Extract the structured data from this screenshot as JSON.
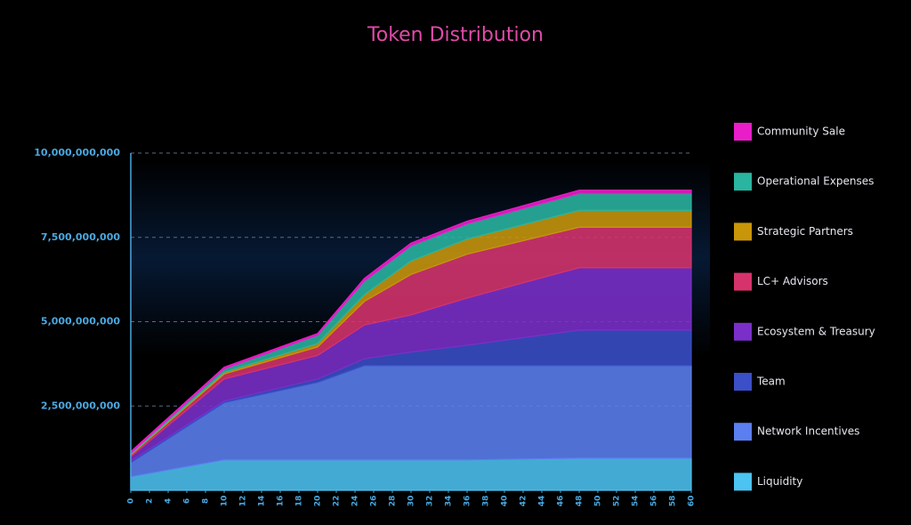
{
  "chart_data": {
    "type": "stacked-area",
    "title": "Token Distribution",
    "x": [
      0,
      10,
      20,
      25,
      30,
      36,
      48,
      60
    ],
    "xlim": [
      0,
      62
    ],
    "xticks": [
      0,
      2,
      4,
      6,
      8,
      10,
      12,
      14,
      16,
      18,
      20,
      22,
      24,
      26,
      28,
      30,
      32,
      34,
      36,
      38,
      40,
      42,
      44,
      46,
      48,
      50,
      52,
      54,
      56,
      58,
      60
    ],
    "ylim": [
      0,
      10000000000
    ],
    "yticks": [
      {
        "value": 2500000000,
        "label": "2,500,000,000"
      },
      {
        "value": 5000000000,
        "label": "5,000,000,000"
      },
      {
        "value": 7500000000,
        "label": "7,500,000,000"
      },
      {
        "value": 10000000000,
        "label": "10,000,000,000"
      }
    ],
    "grid": true,
    "legend": "right",
    "series": [
      {
        "name": "Liquidity",
        "color": "#4cc3f0",
        "values": [
          400000000,
          900000000,
          900000000,
          900000000,
          900000000,
          900000000,
          950000000,
          950000000
        ]
      },
      {
        "name": "Network Incentives",
        "color": "#5b7ff0",
        "values": [
          420000000,
          1700000000,
          2300000000,
          2800000000,
          2800000000,
          2800000000,
          2750000000,
          2750000000
        ]
      },
      {
        "name": "Team",
        "color": "#3a4fc8",
        "values": [
          50000000,
          50000000,
          100000000,
          200000000,
          400000000,
          600000000,
          1050000000,
          1050000000
        ]
      },
      {
        "name": "Ecosystem & Treasury",
        "color": "#7b2fc9",
        "values": [
          130000000,
          650000000,
          700000000,
          1000000000,
          1100000000,
          1400000000,
          1850000000,
          1850000000
        ]
      },
      {
        "name": "LC+ Advisors",
        "color": "#d6336c",
        "values": [
          50000000,
          150000000,
          250000000,
          700000000,
          1200000000,
          1300000000,
          1200000000,
          1200000000
        ]
      },
      {
        "name": "Strategic Partners",
        "color": "#c9960a",
        "values": [
          20000000,
          50000000,
          100000000,
          200000000,
          400000000,
          450000000,
          500000000,
          500000000
        ]
      },
      {
        "name": "Operational Expenses",
        "color": "#2ab5a0",
        "values": [
          30000000,
          100000000,
          250000000,
          400000000,
          450000000,
          450000000,
          500000000,
          500000000
        ]
      },
      {
        "name": "Community Sale",
        "color": "#e91ec8",
        "values": [
          50000000,
          50000000,
          50000000,
          80000000,
          80000000,
          80000000,
          100000000,
          100000000
        ]
      }
    ]
  }
}
